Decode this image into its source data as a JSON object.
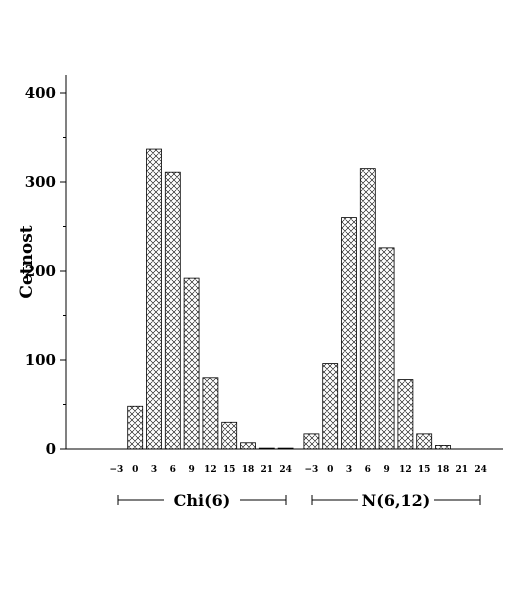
{
  "chart_data": {
    "type": "bar",
    "title": "",
    "ylabel": "Cetnost",
    "xlabel": "",
    "ylim": [
      0,
      420
    ],
    "yticks": [
      0,
      100,
      200,
      300,
      400
    ],
    "grid": false,
    "pattern": "crosshatch",
    "groups": [
      {
        "name": "Chi(6)",
        "categories": [
          "-3",
          "0",
          "3",
          "6",
          "9",
          "12",
          "15",
          "18",
          "21",
          "24"
        ],
        "values": [
          0,
          48,
          337,
          311,
          192,
          80,
          30,
          7,
          1,
          1
        ]
      },
      {
        "name": "N(6,12)",
        "categories": [
          "-3",
          "0",
          "3",
          "6",
          "9",
          "12",
          "15",
          "18",
          "21",
          "24"
        ],
        "values": [
          17,
          96,
          260,
          315,
          226,
          78,
          17,
          4,
          0,
          0
        ]
      }
    ]
  }
}
